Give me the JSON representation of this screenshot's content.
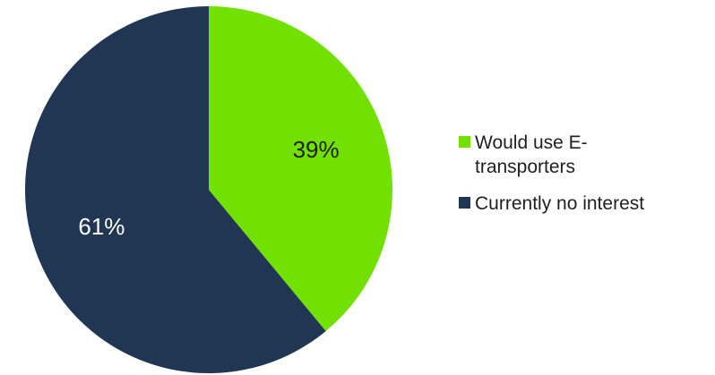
{
  "chart_data": {
    "type": "pie",
    "categories": [
      "Would use E-transporters",
      "Currently no interest"
    ],
    "values": [
      39,
      61
    ],
    "value_labels": [
      "39%",
      "61%"
    ],
    "colors": [
      "#72e000",
      "#213653"
    ],
    "label_colors": [
      "#1f1f1f",
      "#ffffff"
    ],
    "legend_position": "right",
    "start_angle": "12 o'clock, clockwise"
  },
  "legend": {
    "items": [
      {
        "label": "Would use E-transporters",
        "display_label": "Would use E- transporters",
        "color": "#72e000"
      },
      {
        "label": "Currently no interest",
        "display_label": "Currently no interest",
        "color": "#213653"
      }
    ]
  }
}
